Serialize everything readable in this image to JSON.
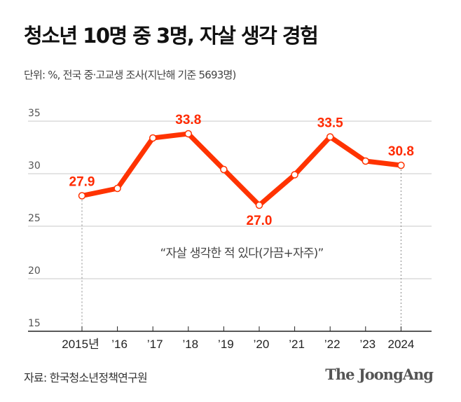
{
  "title": "청소년 10명 중 3명, 자살 생각 경험",
  "subtitle": "단위: %, 전국 중·고교생 조사(지난해 기준 5693명)",
  "source": "자료: 한국청소년정책연구원",
  "logo": "The JoongAng",
  "colors": {
    "line": "#ff3300",
    "label": "#ff2a00",
    "grid": "#c8c8c8"
  },
  "chart_data": {
    "type": "line",
    "title": "청소년 10명 중 3명, 자살 생각 경험",
    "annotation": "“자살 생각한 적 있다(가끔+자주)”",
    "categories": [
      "2015년",
      "’16",
      "’17",
      "’18",
      "’19",
      "’20",
      "’21",
      "’22",
      "’23",
      "2024"
    ],
    "values": [
      27.9,
      28.6,
      33.4,
      33.8,
      30.4,
      27.0,
      29.9,
      33.5,
      31.2,
      30.8
    ],
    "data_labels": [
      {
        "index": 0,
        "text": "27.9"
      },
      {
        "index": 3,
        "text": "33.8"
      },
      {
        "index": 5,
        "text": "27.0"
      },
      {
        "index": 7,
        "text": "33.5"
      },
      {
        "index": 9,
        "text": "30.8"
      }
    ],
    "yticks": [
      "15",
      "20",
      "25",
      "30",
      "35"
    ],
    "ylim": [
      15,
      35
    ],
    "grid": true
  }
}
